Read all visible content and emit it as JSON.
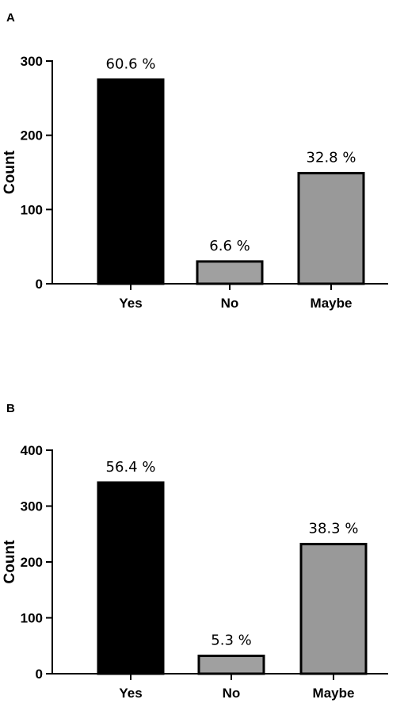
{
  "chart_data": [
    {
      "panel": "A",
      "type": "bar",
      "categories": [
        "Yes",
        "No",
        "Maybe"
      ],
      "values": [
        275,
        30,
        149
      ],
      "data_labels": [
        "60.6 %",
        "6.6 %",
        "32.8 %"
      ],
      "ylabel": "Count",
      "ylim": [
        0,
        300
      ],
      "yticks": [
        0,
        100,
        200,
        300
      ],
      "ytick_labels": [
        "0",
        "100",
        "200",
        "300"
      ],
      "grid": false,
      "colors": [
        "#000000",
        "#a0a0a0",
        "#999999"
      ]
    },
    {
      "panel": "B",
      "type": "bar",
      "categories": [
        "Yes",
        "No",
        "Maybe"
      ],
      "values": [
        342,
        32,
        232
      ],
      "data_labels": [
        "56.4 %",
        "5.3 %",
        "38.3 %"
      ],
      "ylabel": "Count",
      "ylim": [
        0,
        400
      ],
      "yticks": [
        0,
        100,
        200,
        300,
        400
      ],
      "ytick_labels": [
        "0",
        "100",
        "200",
        "300",
        "400"
      ],
      "grid": false,
      "colors": [
        "#000000",
        "#a0a0a0",
        "#999999"
      ]
    }
  ]
}
